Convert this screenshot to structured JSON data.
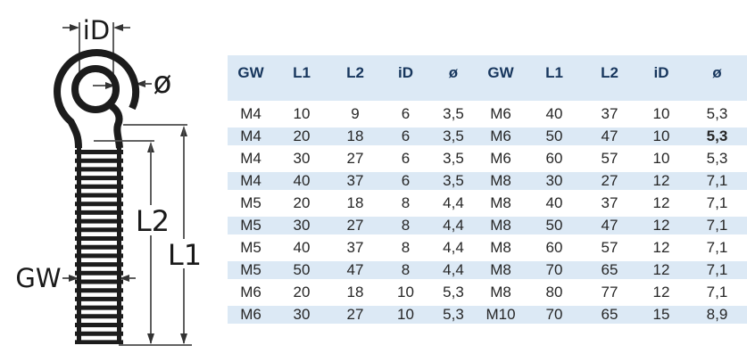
{
  "diagram": {
    "labels": {
      "inner_diameter": "iD",
      "wire_diameter": "ø",
      "shank_length": "L2",
      "total_length": "L1",
      "thread": "GW"
    },
    "stroke_color": "#1c1c1c",
    "dimension_line_color": "#4d4d4d"
  },
  "table": {
    "headers": [
      "GW",
      "L1",
      "L2",
      "iD",
      "ø",
      "GW",
      "L1",
      "L2",
      "iD",
      "ø"
    ],
    "rows": [
      [
        "M4",
        "10",
        "9",
        "6",
        "3,5",
        "M6",
        "40",
        "37",
        "10",
        "5,3"
      ],
      [
        "M4",
        "20",
        "18",
        "6",
        "3,5",
        "M6",
        "50",
        "47",
        "10",
        "5,3"
      ],
      [
        "M4",
        "30",
        "27",
        "6",
        "3,5",
        "M6",
        "60",
        "57",
        "10",
        "5,3"
      ],
      [
        "M4",
        "40",
        "37",
        "6",
        "3,5",
        "M8",
        "30",
        "27",
        "12",
        "7,1"
      ],
      [
        "M5",
        "20",
        "18",
        "8",
        "4,4",
        "M8",
        "40",
        "37",
        "12",
        "7,1"
      ],
      [
        "M5",
        "30",
        "27",
        "8",
        "4,4",
        "M8",
        "50",
        "47",
        "12",
        "7,1"
      ],
      [
        "M5",
        "40",
        "37",
        "8",
        "4,4",
        "M8",
        "60",
        "57",
        "12",
        "7,1"
      ],
      [
        "M5",
        "50",
        "47",
        "8",
        "4,4",
        "M8",
        "70",
        "65",
        "12",
        "7,1"
      ],
      [
        "M6",
        "20",
        "18",
        "10",
        "5,3",
        "M8",
        "80",
        "77",
        "12",
        "7,1"
      ],
      [
        "M6",
        "30",
        "27",
        "10",
        "5,3",
        "M10",
        "70",
        "65",
        "15",
        "8,9"
      ]
    ],
    "bold_cells": [
      [
        1,
        9
      ]
    ],
    "colors": {
      "header_bg": "#dce9f5",
      "row_alt_bg": "#dce9f5",
      "header_text": "#17365d",
      "body_text": "#262626"
    }
  }
}
